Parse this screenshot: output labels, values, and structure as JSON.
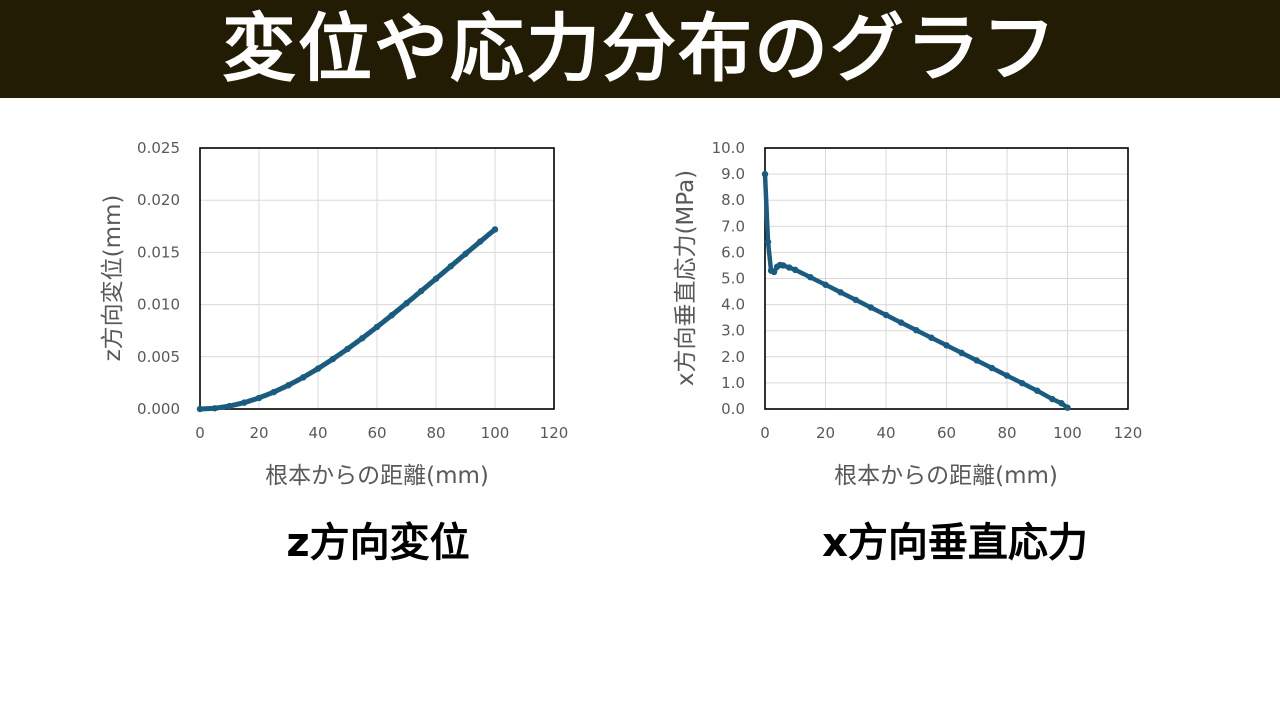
{
  "banner": {
    "title": "変位や応力分布のグラフ"
  },
  "captions": {
    "left": "z方向変位",
    "right": "x方向垂直応力"
  },
  "colors": {
    "banner_bg": "#231c04",
    "series": "#1a5c80",
    "grid": "#d9d9d9"
  },
  "chart_data": [
    {
      "type": "scatter",
      "xlabel": "根本からの距離(mm)",
      "ylabel": "z方向変位(mm)",
      "xlim": [
        0,
        120
      ],
      "ylim": [
        0,
        0.025
      ],
      "x_ticks": [
        "0",
        "20",
        "40",
        "60",
        "80",
        "100",
        "120"
      ],
      "y_ticks": [
        "0.000",
        "0.005",
        "0.010",
        "0.015",
        "0.020",
        "0.025"
      ],
      "grid": true,
      "series": [
        {
          "x": [
            0,
            5,
            10,
            15,
            20,
            25,
            30,
            35,
            40,
            45,
            50,
            55,
            60,
            65,
            70,
            75,
            80,
            85,
            90,
            95,
            100
          ],
          "values": [
            0.0,
            7e-05,
            0.00028,
            0.00061,
            0.00106,
            0.00162,
            0.00228,
            0.00303,
            0.00387,
            0.00478,
            0.00575,
            0.00678,
            0.00786,
            0.00898,
            0.01013,
            0.0113,
            0.01248,
            0.01367,
            0.01486,
            0.01604,
            0.0172
          ]
        }
      ]
    },
    {
      "type": "scatter",
      "xlabel": "根本からの距離(mm)",
      "ylabel": "x方向垂直応力(MPa)",
      "xlim": [
        0,
        120
      ],
      "ylim": [
        0,
        10
      ],
      "x_ticks": [
        "0",
        "20",
        "40",
        "60",
        "80",
        "100",
        "120"
      ],
      "y_ticks": [
        "0.0",
        "1.0",
        "2.0",
        "3.0",
        "4.0",
        "5.0",
        "6.0",
        "7.0",
        "8.0",
        "9.0",
        "10.0"
      ],
      "grid": true,
      "series": [
        {
          "x": [
            0,
            1,
            2,
            3,
            4,
            5,
            6,
            8,
            10,
            15,
            20,
            25,
            30,
            35,
            40,
            45,
            50,
            55,
            60,
            65,
            70,
            75,
            80,
            85,
            90,
            95,
            98,
            100
          ],
          "values": [
            9.0,
            6.4,
            5.3,
            5.25,
            5.45,
            5.52,
            5.5,
            5.42,
            5.33,
            5.05,
            4.76,
            4.47,
            4.18,
            3.89,
            3.6,
            3.31,
            3.02,
            2.73,
            2.44,
            2.15,
            1.86,
            1.57,
            1.28,
            0.99,
            0.7,
            0.38,
            0.22,
            0.05
          ]
        }
      ]
    }
  ]
}
